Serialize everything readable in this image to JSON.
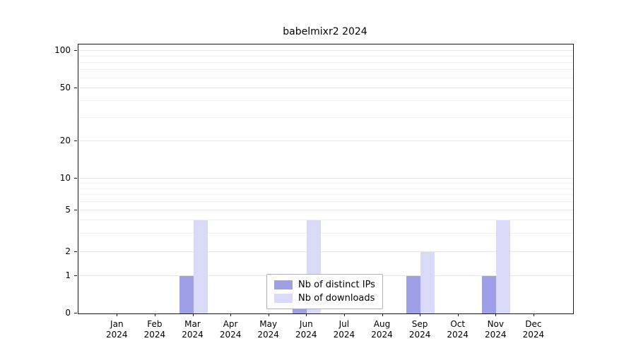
{
  "chart_data": {
    "type": "bar",
    "title": "babelmixr2 2024",
    "categories": [
      "Jan 2024",
      "Feb 2024",
      "Mar 2024",
      "Apr 2024",
      "May 2024",
      "Jun 2024",
      "Jul 2024",
      "Aug 2024",
      "Sep 2024",
      "Oct 2024",
      "Nov 2024",
      "Dec 2024"
    ],
    "x_tick_line1": [
      "Jan",
      "Feb",
      "Mar",
      "Apr",
      "May",
      "Jun",
      "Jul",
      "Aug",
      "Sep",
      "Oct",
      "Nov",
      "Dec"
    ],
    "x_tick_line2": "2024",
    "series": [
      {
        "name": "Nb of distinct IPs",
        "color": "#9f9fe8",
        "values": [
          0,
          0,
          1,
          0,
          0,
          1,
          0,
          0,
          1,
          0,
          1,
          0
        ]
      },
      {
        "name": "Nb of downloads",
        "color": "#d9d9f8",
        "values": [
          0,
          0,
          4,
          0,
          0,
          4,
          0,
          0,
          2,
          0,
          4,
          0
        ]
      }
    ],
    "y_axis": {
      "scale": "log-like",
      "ticks": [
        0,
        1,
        2,
        5,
        10,
        20,
        50,
        100
      ],
      "tick_labels": [
        "0",
        "1",
        "2",
        "5",
        "10",
        "20",
        "50",
        "100"
      ],
      "minor_gridlines": [
        3,
        4,
        6,
        7,
        8,
        9,
        30,
        40,
        60,
        70,
        80,
        90
      ],
      "range": [
        0,
        100
      ]
    },
    "legend": {
      "position": "bottom-center",
      "entries": [
        "Nb of distinct IPs",
        "Nb of downloads"
      ]
    },
    "grid": true,
    "colors": {
      "axis": "#1a1a1a",
      "grid_major": "#e5e5e5",
      "grid_minor": "#f1f1f1",
      "background": "#ffffff",
      "legend_border": "#b0b0b0"
    }
  }
}
